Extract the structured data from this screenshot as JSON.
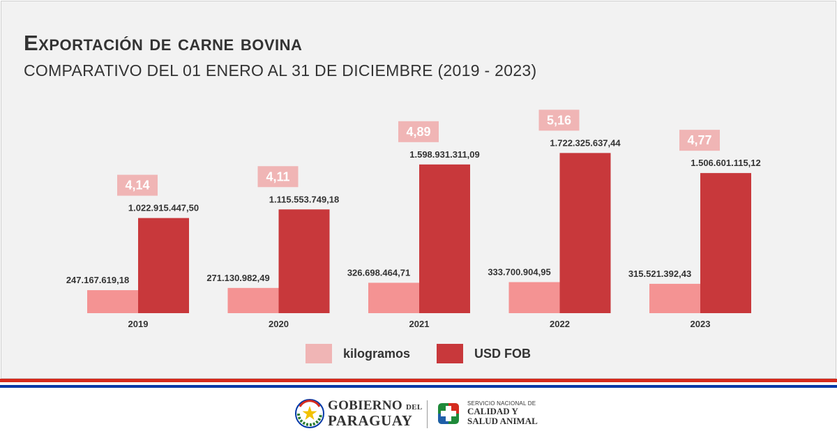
{
  "header": {
    "title": "Exportación de carne bovina",
    "subtitle": "COMPARATIVO DEL 01 ENERO AL 31 DE DICIEMBRE (2019 - 2023)"
  },
  "colors": {
    "kilogramos": "#f49393",
    "usd_fob": "#c8383b",
    "ratio_box": "#f0b5b5",
    "ratio_text": "#ffffff",
    "label_text": "#333333",
    "stripe_red": "#d52b1e",
    "stripe_blue": "#0038a8"
  },
  "chart_data": {
    "type": "bar",
    "title": "Exportación de carne bovina",
    "subtitle": "COMPARATIVO DEL 01 ENERO AL 31 DE DICIEMBRE (2019 - 2023)",
    "categories": [
      "2019",
      "2020",
      "2021",
      "2022",
      "2023"
    ],
    "series": [
      {
        "name": "kilogramos",
        "values": [
          247167619.18,
          271130982.49,
          326698464.71,
          333700904.95,
          315521392.43
        ],
        "labels": [
          "247.167.619,18",
          "271.130.982,49",
          "326.698.464,71",
          "333.700.904,95",
          "315.521.392,43"
        ]
      },
      {
        "name": "USD FOB",
        "values": [
          1022915447.5,
          1115553749.18,
          1598931311.09,
          1722325637.44,
          1506601115.12
        ],
        "labels": [
          "1.022.915.447,50",
          "1.115.553.749,18",
          "1.598.931.311,09",
          "1.722.325.637,44",
          "1.506.601.115,12"
        ]
      }
    ],
    "ratios": [
      "4,14",
      "4,11",
      "4,89",
      "5,16",
      "4,77"
    ],
    "ylim": [
      0,
      1800000000
    ],
    "grid": false,
    "legend": "bottom-center",
    "xlabel": "",
    "ylabel": ""
  },
  "legend": {
    "kilogramos": "kilogramos",
    "usd_fob": "USD FOB"
  },
  "footer": {
    "gov_line1": "GOBIERNO",
    "gov_line1_small": "DEL",
    "gov_line2": "PARAGUAY",
    "senacsa_line1": "SERVICIO NACIONAL DE",
    "senacsa_line2": "CALIDAD Y",
    "senacsa_line3": "SALUD ANIMAL"
  }
}
